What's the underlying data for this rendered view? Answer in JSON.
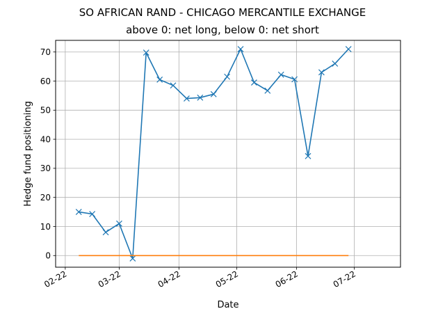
{
  "chart_data": {
    "type": "line",
    "title": "SO AFRICAN RAND - CHICAGO MERCANTILE EXCHANGE",
    "subtitle": "above 0: net long, below 0: net short",
    "xlabel": "Date",
    "ylabel": "Hedge fund positioning",
    "ylim": [
      -4,
      74
    ],
    "yticks": [
      0,
      10,
      20,
      30,
      40,
      50,
      60,
      70
    ],
    "xlim": [
      "2022-01-27",
      "2022-07-25"
    ],
    "xticks": [
      {
        "date": "2022-02-01",
        "label": "02-22"
      },
      {
        "date": "2022-03-01",
        "label": "03-22"
      },
      {
        "date": "2022-04-01",
        "label": "04-22"
      },
      {
        "date": "2022-05-01",
        "label": "05-22"
      },
      {
        "date": "2022-06-01",
        "label": "06-22"
      },
      {
        "date": "2022-07-01",
        "label": "07-22"
      }
    ],
    "grid": true,
    "series": [
      {
        "color": "#1f77b4",
        "marker": "x",
        "x": [
          "2022-02-08",
          "2022-02-15",
          "2022-02-22",
          "2022-03-01",
          "2022-03-08",
          "2022-03-15",
          "2022-03-22",
          "2022-03-29",
          "2022-04-05",
          "2022-04-12",
          "2022-04-19",
          "2022-04-26",
          "2022-05-03",
          "2022-05-10",
          "2022-05-17",
          "2022-05-24",
          "2022-05-31",
          "2022-06-07",
          "2022-06-14",
          "2022-06-21",
          "2022-06-28"
        ],
        "values": [
          15,
          14.3,
          8,
          11,
          -1,
          69.8,
          60.5,
          58.5,
          54,
          54.3,
          55.5,
          61.5,
          71,
          59.5,
          56.7,
          62.2,
          60.6,
          34.2,
          63,
          66,
          71
        ]
      },
      {
        "color": "#ff7f0e",
        "marker": "none",
        "x": [
          "2022-02-08",
          "2022-06-28"
        ],
        "values": [
          0,
          0
        ]
      }
    ]
  }
}
